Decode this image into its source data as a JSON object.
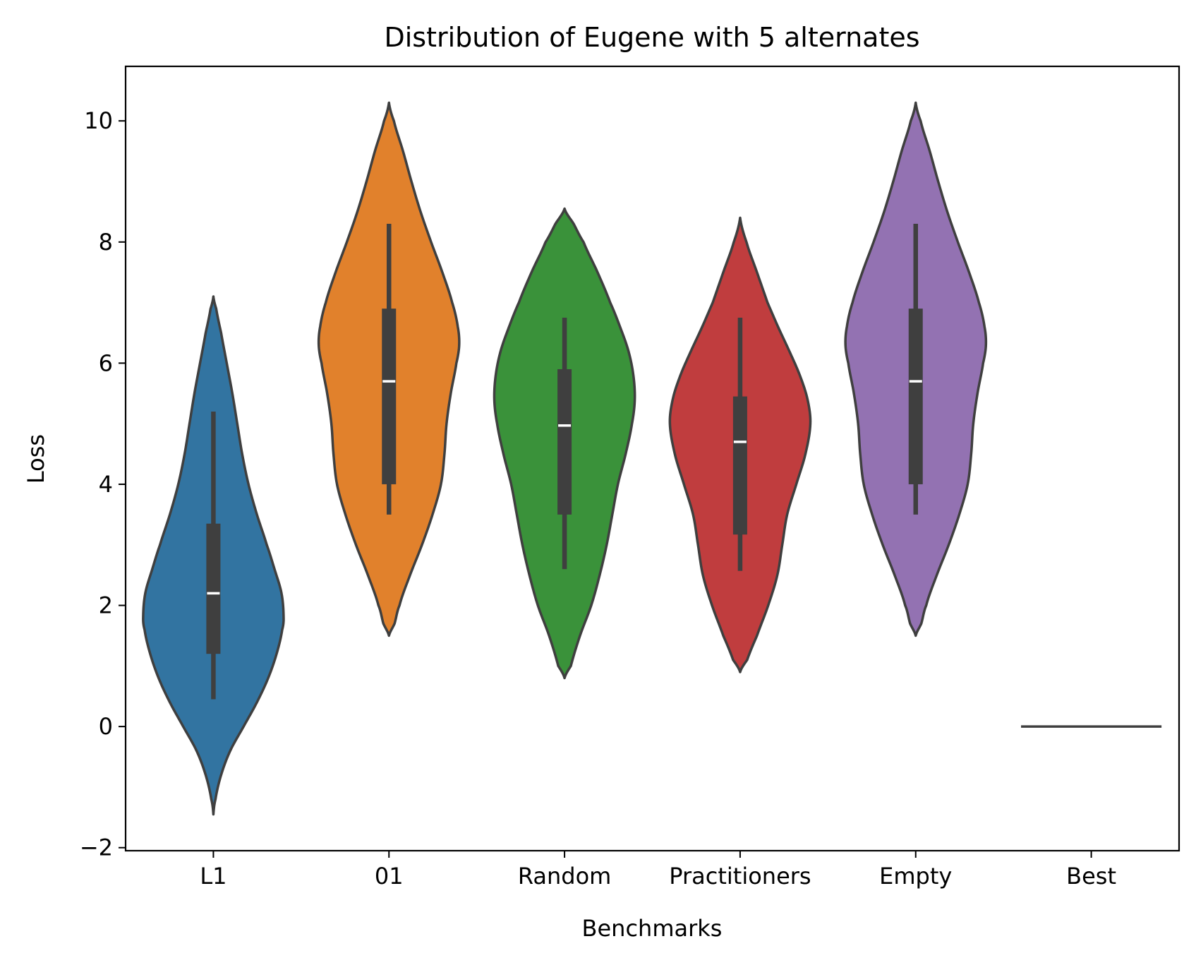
{
  "chart_data": {
    "type": "violin",
    "title": "Distribution of Eugene with 5 alternates",
    "xlabel": "Benchmarks",
    "ylabel": "Loss",
    "ylim": [
      -2.05,
      10.9
    ],
    "yticks": [
      -2,
      0,
      2,
      4,
      6,
      8,
      10
    ],
    "ytick_labels": [
      "−2",
      "0",
      "2",
      "4",
      "6",
      "8",
      "10"
    ],
    "grid": false,
    "categories": [
      "L1",
      "01",
      "Random",
      "Practitioners",
      "Empty",
      "Best"
    ],
    "series": [
      {
        "category": "L1",
        "color": "#3274a1",
        "violin_min": -1.45,
        "violin_max": 7.1,
        "whisker_low": 0.45,
        "q1": 1.2,
        "median": 2.2,
        "q3": 3.35,
        "whisker_high": 5.2,
        "density": [
          [
            -1.45,
            0.0
          ],
          [
            -1.2,
            0.03
          ],
          [
            -0.8,
            0.11
          ],
          [
            -0.4,
            0.24
          ],
          [
            0.0,
            0.43
          ],
          [
            0.4,
            0.62
          ],
          [
            0.8,
            0.78
          ],
          [
            1.2,
            0.9
          ],
          [
            1.6,
            0.98
          ],
          [
            1.8,
            1.0
          ],
          [
            2.2,
            0.97
          ],
          [
            2.6,
            0.87
          ],
          [
            3.0,
            0.76
          ],
          [
            3.5,
            0.62
          ],
          [
            4.0,
            0.5
          ],
          [
            4.5,
            0.41
          ],
          [
            5.0,
            0.34
          ],
          [
            5.5,
            0.27
          ],
          [
            6.0,
            0.19
          ],
          [
            6.5,
            0.11
          ],
          [
            6.9,
            0.04
          ],
          [
            7.1,
            0.0
          ]
        ]
      },
      {
        "category": "01",
        "color": "#e1812c",
        "violin_min": 1.5,
        "violin_max": 10.3,
        "whisker_low": 3.5,
        "q1": 4.0,
        "median": 5.7,
        "q3": 6.9,
        "whisker_high": 8.3,
        "density": [
          [
            1.5,
            0.0
          ],
          [
            1.7,
            0.08
          ],
          [
            2.0,
            0.15
          ],
          [
            2.5,
            0.3
          ],
          [
            3.0,
            0.47
          ],
          [
            3.5,
            0.62
          ],
          [
            4.0,
            0.74
          ],
          [
            4.5,
            0.79
          ],
          [
            5.0,
            0.82
          ],
          [
            5.5,
            0.88
          ],
          [
            6.0,
            0.96
          ],
          [
            6.3,
            1.0
          ],
          [
            6.6,
            0.98
          ],
          [
            7.0,
            0.9
          ],
          [
            7.5,
            0.76
          ],
          [
            8.0,
            0.6
          ],
          [
            8.5,
            0.45
          ],
          [
            9.0,
            0.32
          ],
          [
            9.5,
            0.2
          ],
          [
            10.0,
            0.07
          ],
          [
            10.3,
            0.0
          ]
        ]
      },
      {
        "category": "Random",
        "color": "#3a923a",
        "violin_min": 0.8,
        "violin_max": 8.55,
        "whisker_low": 2.6,
        "q1": 3.5,
        "median": 4.97,
        "q3": 5.9,
        "whisker_high": 6.75,
        "density": [
          [
            0.8,
            0.0
          ],
          [
            1.0,
            0.09
          ],
          [
            1.5,
            0.22
          ],
          [
            2.0,
            0.38
          ],
          [
            2.5,
            0.5
          ],
          [
            3.0,
            0.6
          ],
          [
            3.5,
            0.68
          ],
          [
            4.0,
            0.76
          ],
          [
            4.5,
            0.87
          ],
          [
            5.0,
            0.96
          ],
          [
            5.4,
            1.0
          ],
          [
            5.8,
            0.98
          ],
          [
            6.2,
            0.91
          ],
          [
            6.6,
            0.79
          ],
          [
            7.0,
            0.65
          ],
          [
            7.5,
            0.47
          ],
          [
            8.0,
            0.27
          ],
          [
            8.3,
            0.13
          ],
          [
            8.55,
            0.0
          ]
        ]
      },
      {
        "category": "Practitioners",
        "color": "#c03d3e",
        "violin_min": 0.9,
        "violin_max": 8.4,
        "whisker_low": 2.57,
        "q1": 3.17,
        "median": 4.7,
        "q3": 5.45,
        "whisker_high": 6.75,
        "density": [
          [
            0.9,
            0.0
          ],
          [
            1.1,
            0.1
          ],
          [
            1.5,
            0.24
          ],
          [
            2.0,
            0.4
          ],
          [
            2.5,
            0.53
          ],
          [
            3.0,
            0.6
          ],
          [
            3.5,
            0.67
          ],
          [
            4.0,
            0.8
          ],
          [
            4.5,
            0.93
          ],
          [
            5.0,
            1.0
          ],
          [
            5.4,
            0.96
          ],
          [
            5.8,
            0.85
          ],
          [
            6.2,
            0.7
          ],
          [
            6.6,
            0.54
          ],
          [
            7.0,
            0.39
          ],
          [
            7.5,
            0.24
          ],
          [
            8.0,
            0.09
          ],
          [
            8.4,
            0.0
          ]
        ]
      },
      {
        "category": "Empty",
        "color": "#9372b2",
        "violin_min": 1.5,
        "violin_max": 10.3,
        "whisker_low": 3.5,
        "q1": 4.0,
        "median": 5.7,
        "q3": 6.9,
        "whisker_high": 8.3,
        "density": [
          [
            1.5,
            0.0
          ],
          [
            1.7,
            0.08
          ],
          [
            2.0,
            0.15
          ],
          [
            2.5,
            0.3
          ],
          [
            3.0,
            0.47
          ],
          [
            3.5,
            0.62
          ],
          [
            4.0,
            0.74
          ],
          [
            4.5,
            0.79
          ],
          [
            5.0,
            0.82
          ],
          [
            5.5,
            0.88
          ],
          [
            6.0,
            0.96
          ],
          [
            6.3,
            1.0
          ],
          [
            6.6,
            0.98
          ],
          [
            7.0,
            0.9
          ],
          [
            7.5,
            0.76
          ],
          [
            8.0,
            0.6
          ],
          [
            8.5,
            0.45
          ],
          [
            9.0,
            0.32
          ],
          [
            9.5,
            0.2
          ],
          [
            10.0,
            0.07
          ],
          [
            10.3,
            0.0
          ]
        ]
      },
      {
        "category": "Best",
        "color": "#3f3f3f",
        "constant_value": 0.0
      }
    ]
  }
}
